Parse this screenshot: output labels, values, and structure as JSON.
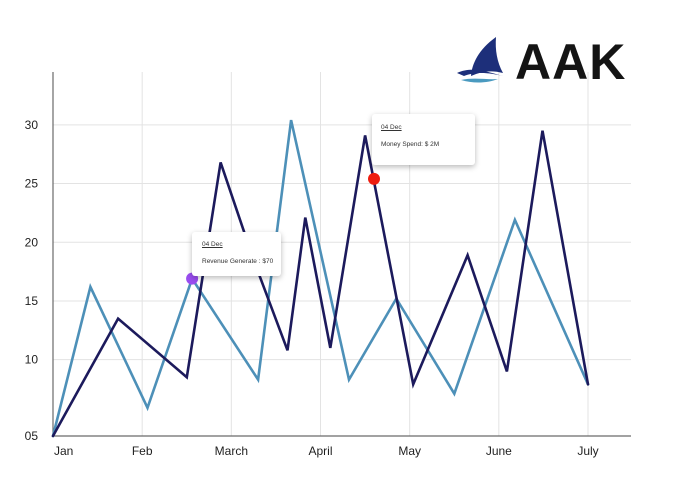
{
  "brand": {
    "name": "AAK",
    "icon": "sailboat-icon",
    "icon_colors": [
      "#1d2f7a",
      "#4a9ac0"
    ]
  },
  "colors": {
    "series_dark": "#1c1a5c",
    "series_light": "#4d90b8",
    "marker_purple": "#9a4df0",
    "marker_red": "#ee1c0f",
    "grid": "#e3e3e3",
    "axis": "#6a6a6a"
  },
  "tooltips": [
    {
      "date": "04 Dec",
      "text": "Revenue Generate : $70"
    },
    {
      "date": "04 Dec",
      "text": "Money Spend: $ 2M"
    }
  ],
  "chart_data": {
    "type": "line",
    "title": "",
    "xlabel": "",
    "ylabel": "",
    "categories": [
      "Jan",
      "Feb",
      "March",
      "April",
      "May",
      "June",
      "July"
    ],
    "y_ticks": [
      "05",
      "10",
      "15",
      "20",
      "25",
      "30"
    ],
    "ylim": [
      3.5,
      34.5
    ],
    "grid": true,
    "series": [
      {
        "color": "#1c1a5c",
        "points": [
          [
            0,
            3.5
          ],
          [
            0.73,
            13.5
          ],
          [
            1.5,
            8.5
          ],
          [
            1.88,
            26.8
          ],
          [
            2.25,
            18.5
          ],
          [
            2.63,
            10.8
          ],
          [
            2.83,
            22.1
          ],
          [
            3.11,
            11.0
          ],
          [
            3.5,
            29.1
          ],
          [
            4.04,
            7.9
          ],
          [
            4.65,
            18.9
          ],
          [
            5.09,
            9.0
          ],
          [
            5.49,
            29.5
          ],
          [
            6.0,
            7.9
          ]
        ]
      },
      {
        "color": "#4d90b8",
        "points": [
          [
            0,
            3.5
          ],
          [
            0.42,
            16.2
          ],
          [
            1.06,
            5.9
          ],
          [
            1.56,
            16.9
          ],
          [
            2.3,
            8.3
          ],
          [
            2.67,
            30.4
          ],
          [
            3.32,
            8.3
          ],
          [
            3.85,
            15.2
          ],
          [
            4.5,
            7.1
          ],
          [
            5.18,
            21.9
          ],
          [
            6.0,
            7.9
          ]
        ]
      }
    ],
    "markers": [
      {
        "x": 1.56,
        "y": 16.9,
        "color": "#9a4df0"
      },
      {
        "x": 3.6,
        "y": 25.4,
        "color": "#ee1c0f"
      }
    ]
  }
}
